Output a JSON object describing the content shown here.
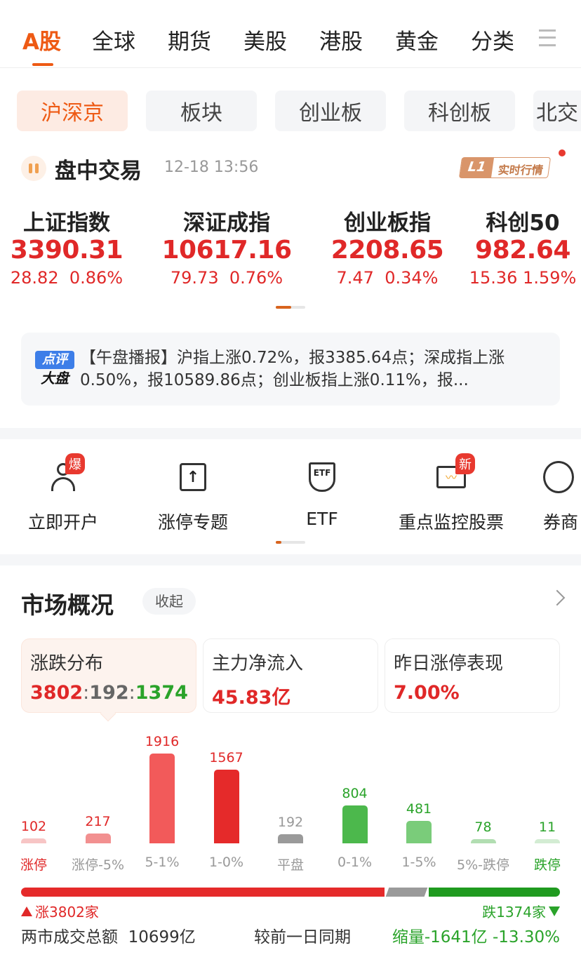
{
  "top_tabs": [
    "A股",
    "全球",
    "期货",
    "美股",
    "港股",
    "黄金",
    "分类"
  ],
  "sub_tabs": [
    "沪深京",
    "板块",
    "创业板",
    "科创板",
    "北交"
  ],
  "session": {
    "title": "盘中交易",
    "time": "12-18 13:56",
    "badge_l1": "L1",
    "badge_text": "实时行情"
  },
  "indices": [
    {
      "name": "上证指数",
      "value": "3390.31",
      "change": "28.82",
      "pct": "0.86%"
    },
    {
      "name": "深证成指",
      "value": "10617.16",
      "change": "79.73",
      "pct": "0.76%"
    },
    {
      "name": "创业板指",
      "value": "2208.65",
      "change": "7.47",
      "pct": "0.34%"
    },
    {
      "name": "科创50",
      "value": "982.64",
      "change": "15.36",
      "pct": "1.59%"
    }
  ],
  "news": {
    "logo_top": "点评",
    "logo_bottom": "大盘",
    "text": "【午盘播报】沪指上涨0.72%，报3385.64点；深成指上涨0.50%，报10589.86点；创业板指上涨0.11%，报..."
  },
  "shortcuts": [
    {
      "label": "立即开户",
      "icon": "user-add-icon",
      "badge": "爆"
    },
    {
      "label": "涨停专题",
      "icon": "limit-up-icon"
    },
    {
      "label": "ETF",
      "icon": "etf-icon"
    },
    {
      "label": "重点监控股票",
      "icon": "monitor-icon",
      "badge": "新"
    },
    {
      "label": "券商",
      "icon": "broker-icon"
    }
  ],
  "market": {
    "title": "市场概况",
    "collapse": "收起",
    "cards": [
      {
        "title": "涨跌分布",
        "up": "3802",
        "flat": "192",
        "down": "1374",
        "sep": ":"
      },
      {
        "title": "主力净流入",
        "value": "45.83亿"
      },
      {
        "title": "昨日涨停表现",
        "value": "7.00%"
      }
    ],
    "up_label": "涨3802家",
    "down_label": "跌1374家",
    "turnover_label": "两市成交总额",
    "turnover": "10699亿",
    "compare_label": "较前一日同期",
    "compare_value": "缩量-1641亿",
    "compare_pct": "-13.30%"
  },
  "colors": {
    "accent": "#ee5a14",
    "up": "#e02828",
    "down": "#2aa32a",
    "flat": "#999999"
  },
  "chart_data": {
    "type": "bar",
    "categories": [
      "涨停",
      "涨停-5%",
      "5-1%",
      "1-0%",
      "平盘",
      "0-1%",
      "1-5%",
      "5%-跌停",
      "跌停"
    ],
    "values": [
      102,
      217,
      1916,
      1567,
      192,
      804,
      481,
      78,
      11
    ],
    "colors": [
      "#f7c5c5",
      "#f29090",
      "#f25a5a",
      "#e52a2a",
      "#9a9a9a",
      "#4cb84c",
      "#7acc7a",
      "#b2deb2",
      "#d3ecd3"
    ],
    "label_colors": [
      "#e02828",
      "#999",
      "#999",
      "#999",
      "#999",
      "#999",
      "#999",
      "#999",
      "#2aa32a"
    ],
    "value_colors": [
      "#e02828",
      "#e02828",
      "#e02828",
      "#e02828",
      "#999",
      "#2aa32a",
      "#2aa32a",
      "#2aa32a",
      "#2aa32a"
    ]
  }
}
